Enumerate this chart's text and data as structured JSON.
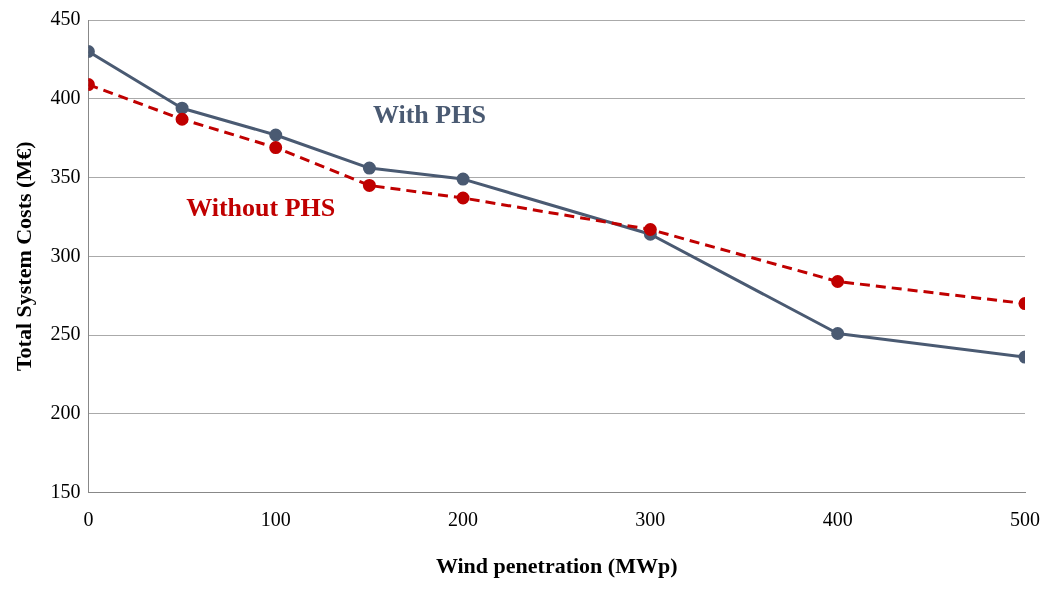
{
  "chart_data": {
    "type": "line",
    "xlabel": "Wind penetration (MWp)",
    "ylabel": "Total System Costs (M€)",
    "x": [
      0,
      50,
      100,
      150,
      200,
      300,
      400,
      500
    ],
    "series": [
      {
        "name": "With PHS",
        "color": "#4a5a72",
        "line_style": "solid",
        "values": [
          430,
          394,
          377,
          356,
          349,
          314,
          251,
          236
        ]
      },
      {
        "name": "Without PHS",
        "color": "#c00000",
        "line_style": "dashed",
        "values": [
          409,
          387,
          369,
          345,
          337,
          317,
          284,
          270
        ]
      }
    ],
    "xlim": [
      0,
      500
    ],
    "xticks": [
      0,
      100,
      200,
      300,
      400,
      500
    ],
    "ylim": [
      150,
      450
    ],
    "yticks": [
      150,
      200,
      250,
      300,
      350,
      400,
      450
    ],
    "grid": "y",
    "legend": false,
    "marker": "circle"
  }
}
